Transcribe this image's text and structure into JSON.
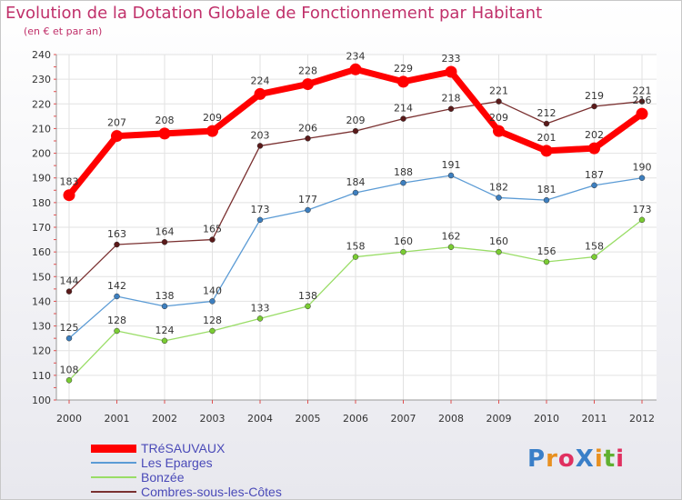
{
  "header": {
    "title": "Evolution de la Dotation Globale de Fonctionnement par Habitant",
    "subtitle": "(en € et par an)"
  },
  "logo": {
    "text": "ProXiti",
    "colors": [
      "#3a7fc8",
      "#e89020",
      "#e03060",
      "#3a7fc8",
      "#e89020",
      "#60b030",
      "#e03060"
    ]
  },
  "chart_data": {
    "type": "line",
    "title": "Evolution de la Dotation Globale de Fonctionnement par Habitant",
    "subtitle": "(en € et par an)",
    "xlabel": "",
    "ylabel": "",
    "x": [
      "2000",
      "2001",
      "2002",
      "2003",
      "2004",
      "2005",
      "2006",
      "2007",
      "2008",
      "2009",
      "2010",
      "2011",
      "2012"
    ],
    "ylim": [
      100,
      240
    ],
    "yticks": [
      100,
      110,
      120,
      130,
      140,
      150,
      160,
      170,
      180,
      190,
      200,
      210,
      220,
      230,
      240
    ],
    "grid": true,
    "legend_position": "bottom-left",
    "series": [
      {
        "name": "TRéSAUVAUX",
        "color": "#ff0000",
        "values": [
          183,
          207,
          208,
          209,
          224,
          228,
          234,
          229,
          233,
          209,
          201,
          202,
          216
        ],
        "labels": [
          "183",
          "207",
          "208",
          "209",
          "224",
          "228",
          "234",
          "229",
          "233",
          "209",
          "201",
          "202",
          "216"
        ]
      },
      {
        "name": "Les Eparges",
        "color": "#5b9bd5",
        "values": [
          125,
          142,
          138,
          140,
          173,
          177,
          184,
          188,
          191,
          182,
          181,
          187,
          190
        ],
        "labels": [
          "125",
          "142",
          "138",
          "140",
          "173",
          "177",
          "184",
          "188",
          "191",
          "182",
          "181",
          "187",
          "190"
        ]
      },
      {
        "name": "Bonzée",
        "color": "#99dd66",
        "values": [
          108,
          128,
          124,
          128,
          133,
          138,
          158,
          160,
          162,
          160,
          156,
          158,
          173
        ],
        "labels": [
          "108",
          "128",
          "124",
          "128",
          "133",
          "138",
          "158",
          "160",
          "162",
          "160",
          "156",
          "158",
          "173"
        ]
      },
      {
        "name": "Combres-sous-les-Côtes",
        "color": "#7a3030",
        "values": [
          144,
          163,
          164,
          165,
          203,
          206,
          209,
          214,
          218,
          221,
          212,
          219,
          221
        ],
        "labels": [
          "144",
          "163",
          "164",
          "165",
          "203",
          "206",
          "209",
          "214",
          "218",
          "221",
          "212",
          "219",
          "221"
        ]
      }
    ]
  }
}
